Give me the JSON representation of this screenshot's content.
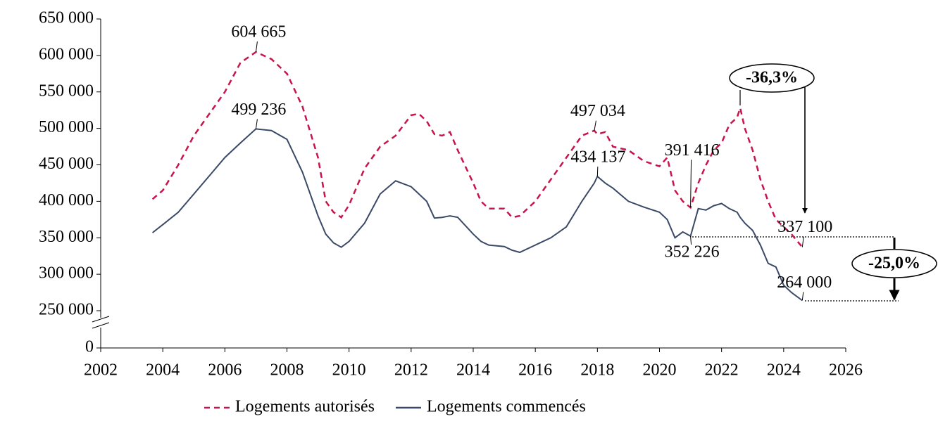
{
  "chart_data": {
    "type": "line",
    "x": [
      2003.67,
      2004.0,
      2004.5,
      2005.0,
      2005.5,
      2006.0,
      2006.5,
      2007.0,
      2007.5,
      2008.0,
      2008.5,
      2009.0,
      2009.25,
      2009.5,
      2009.75,
      2010.0,
      2010.5,
      2011.0,
      2011.5,
      2012.0,
      2012.25,
      2012.5,
      2012.75,
      2013.0,
      2013.25,
      2013.5,
      2014.0,
      2014.25,
      2014.5,
      2015.0,
      2015.25,
      2015.5,
      2016.0,
      2016.5,
      2017.0,
      2017.5,
      2017.9,
      2018.0,
      2018.25,
      2018.5,
      2019.0,
      2019.5,
      2020.0,
      2020.25,
      2020.5,
      2020.75,
      2021.0,
      2021.25,
      2021.5,
      2021.75,
      2022.0,
      2022.25,
      2022.5,
      2022.6,
      2022.75,
      2023.0,
      2023.25,
      2023.5,
      2023.75,
      2024.0,
      2024.25,
      2024.6
    ],
    "series": [
      {
        "name": "Logements autorisés",
        "color": "#c8144b",
        "style": "dashed",
        "values": [
          403000,
          415000,
          450000,
          490000,
          520000,
          550000,
          590000,
          604665,
          595000,
          575000,
          530000,
          460000,
          400000,
          385000,
          378000,
          395000,
          445000,
          475000,
          490000,
          518000,
          520000,
          510000,
          492000,
          490000,
          495000,
          470000,
          425000,
          400000,
          390000,
          390000,
          378000,
          380000,
          400000,
          430000,
          460000,
          490000,
          497034,
          492000,
          495000,
          475000,
          470000,
          455000,
          448000,
          460000,
          415000,
          400000,
          391416,
          425000,
          450000,
          470000,
          480000,
          505000,
          515000,
          528000,
          500000,
          470000,
          430000,
          400000,
          375000,
          365000,
          355000,
          337100
        ],
        "value_labels": [
          null,
          null,
          null,
          null,
          null,
          null,
          null,
          "604 665",
          null,
          null,
          null,
          null,
          null,
          null,
          null,
          null,
          null,
          null,
          null,
          null,
          null,
          null,
          null,
          null,
          null,
          null,
          null,
          null,
          null,
          null,
          null,
          null,
          null,
          null,
          null,
          null,
          "497 034",
          null,
          null,
          null,
          null,
          null,
          null,
          null,
          null,
          null,
          "391 416",
          null,
          null,
          null,
          null,
          null,
          null,
          null,
          null,
          null,
          null,
          null,
          null,
          null,
          null,
          "337 100"
        ]
      },
      {
        "name": "Logements commencés",
        "color": "#3a4a66",
        "style": "solid",
        "values": [
          357000,
          368000,
          385000,
          410000,
          435000,
          460000,
          480000,
          499236,
          497000,
          485000,
          440000,
          380000,
          355000,
          343000,
          337000,
          345000,
          370000,
          410000,
          428000,
          420000,
          410000,
          400000,
          377000,
          378000,
          380000,
          378000,
          355000,
          345000,
          340000,
          338000,
          333000,
          330000,
          340000,
          350000,
          365000,
          400000,
          425000,
          434137,
          425000,
          418000,
          400000,
          392000,
          385000,
          375000,
          350000,
          358000,
          352226,
          390000,
          388000,
          394000,
          397000,
          390000,
          385000,
          378000,
          370000,
          360000,
          340000,
          315000,
          310000,
          285000,
          275000,
          264000
        ],
        "value_labels": [
          null,
          null,
          null,
          null,
          null,
          null,
          null,
          "499 236",
          null,
          null,
          null,
          null,
          null,
          null,
          null,
          null,
          null,
          null,
          null,
          null,
          null,
          null,
          null,
          null,
          null,
          null,
          null,
          null,
          null,
          null,
          null,
          null,
          null,
          null,
          null,
          null,
          null,
          "434 137",
          null,
          null,
          null,
          null,
          null,
          null,
          null,
          null,
          "352 226",
          null,
          null,
          null,
          null,
          null,
          null,
          null,
          null,
          null,
          null,
          null,
          null,
          null,
          null,
          "264 000"
        ]
      }
    ],
    "ylim": [
      0,
      650000
    ],
    "y_break": true,
    "yticks": [
      0,
      {
        "value": 250000,
        "label": "250 000"
      },
      {
        "value": 300000,
        "label": "300 000"
      },
      {
        "value": 350000,
        "label": "350 000"
      },
      {
        "value": 400000,
        "label": "400 000"
      },
      {
        "value": 450000,
        "label": "450 000"
      },
      {
        "value": 500000,
        "label": "500 000"
      },
      {
        "value": 550000,
        "label": "550 000"
      },
      {
        "value": 600000,
        "label": "600 000"
      },
      {
        "value": 650000,
        "label": "650 000"
      }
    ],
    "xlim": [
      2002,
      2026
    ],
    "xticks": [
      2002,
      2004,
      2006,
      2008,
      2010,
      2012,
      2014,
      2016,
      2018,
      2020,
      2022,
      2024,
      2026
    ],
    "annotations": [
      "-36,3%",
      "-25,0%"
    ],
    "legend": "bottom"
  }
}
